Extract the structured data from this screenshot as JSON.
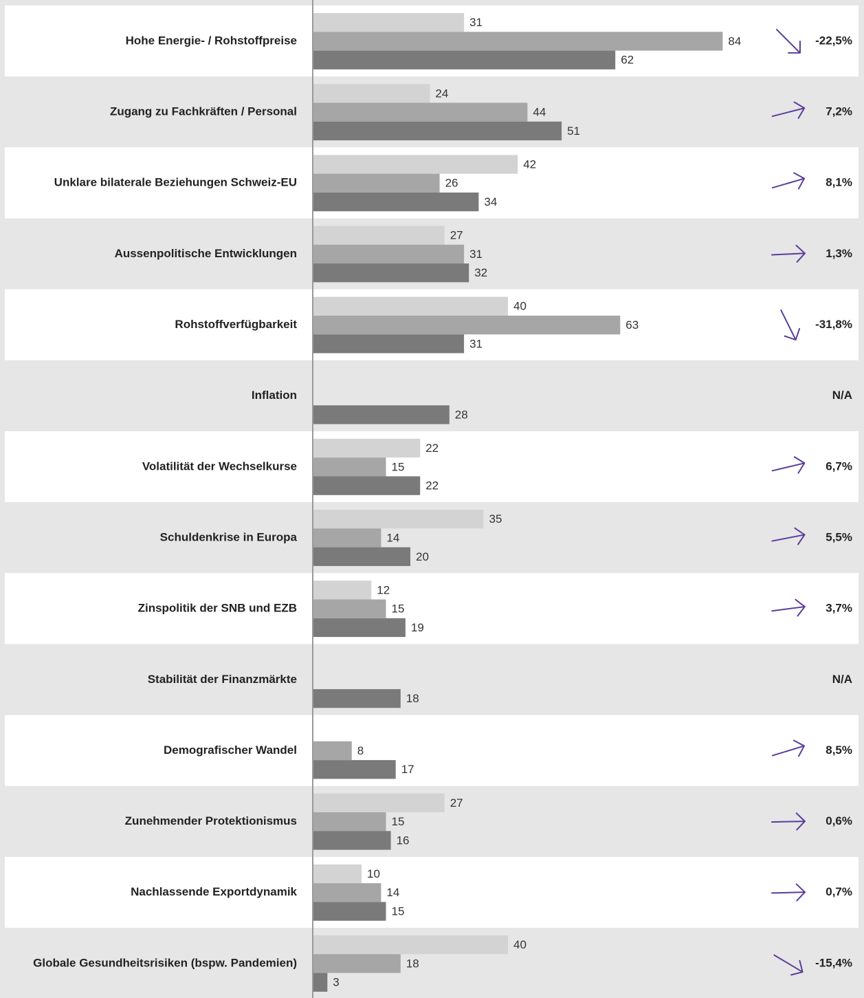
{
  "chart_data": {
    "type": "bar",
    "orientation": "horizontal",
    "categories": [
      "Hohe Energie- / Rohstoffpreise",
      "Zugang zu Fachkräften / Personal",
      "Unklare bilaterale Beziehungen Schweiz-EU",
      "Aussenpolitische Entwicklungen",
      "Rohstoffverfügbarkeit",
      "Inflation",
      "Volatilität der Wechselkurse",
      "Schuldenkrise in Europa",
      "Zinspolitik der SNB und EZB",
      "Stabilität der Finanzmärkte",
      "Demografischer Wandel",
      "Zunehmender Protektionismus",
      "Nachlassende Exportdynamik",
      "Globale Gesundheitsrisiken (bspw. Pandemien)"
    ],
    "series": [
      {
        "color": "#d3d3d3",
        "values": [
          31,
          24,
          42,
          27,
          40,
          null,
          22,
          35,
          12,
          null,
          null,
          27,
          10,
          40
        ]
      },
      {
        "color": "#a6a6a6",
        "values": [
          84,
          44,
          26,
          31,
          63,
          null,
          15,
          14,
          15,
          null,
          8,
          15,
          14,
          18
        ]
      },
      {
        "color": "#7a7a7a",
        "values": [
          62,
          51,
          34,
          32,
          31,
          28,
          22,
          20,
          19,
          18,
          17,
          16,
          15,
          3
        ]
      }
    ],
    "changes": {
      "color": "#5a3c9c",
      "values": [
        -22.5,
        7.2,
        8.1,
        1.3,
        -31.8,
        null,
        6.7,
        5.5,
        3.7,
        null,
        8.5,
        0.6,
        0.7,
        -15.4
      ],
      "value_labels": [
        "-22,5%",
        "7,2%",
        "8,1%",
        "1,3%",
        "-31,8%",
        "N/A",
        "6,7%",
        "5,5%",
        "3,7%",
        "N/A",
        "8,5%",
        "0,6%",
        "0,7%",
        "-15,4%"
      ]
    },
    "xlim": [
      0,
      100
    ]
  }
}
